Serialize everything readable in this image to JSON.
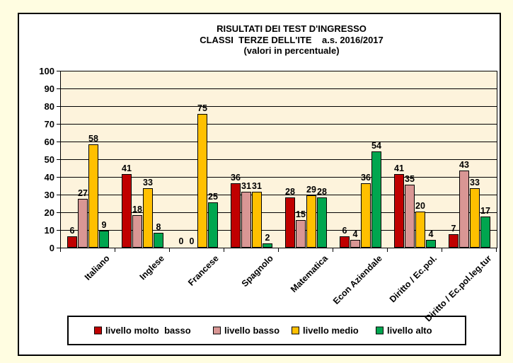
{
  "colors": {
    "page_background": "#FFFDE1",
    "chart_background": "#FFFFFF",
    "plot_background": "#FDF3DC"
  },
  "chart_data": {
    "type": "bar",
    "title_lines": [
      "RISULTATI DEI TEST D'INGRESSO",
      "CLASSI  TERZE DELL'ITE    a.s. 2016/2017",
      "(valori in percentuale)"
    ],
    "categories": [
      "Italiano",
      "Inglese",
      "Francese",
      "Spagnolo",
      "Matematica",
      "Econ Aziendale",
      "Diritto / Ec.pol.",
      "Diritto / Ec.pol.leg.tur"
    ],
    "series": [
      {
        "name": "livello molto  basso",
        "color": "#C00000",
        "values": [
          6,
          41,
          0,
          36,
          28,
          6,
          41,
          7
        ]
      },
      {
        "name": "livello basso",
        "color": "#D99694",
        "values": [
          27,
          18,
          0,
          31,
          15,
          4,
          35,
          43
        ]
      },
      {
        "name": "livello medio",
        "color": "#FFC000",
        "values": [
          58,
          33,
          75,
          31,
          29,
          36,
          20,
          33
        ]
      },
      {
        "name": "livello alto",
        "color": "#00A64F",
        "values": [
          9,
          8,
          25,
          2,
          28,
          54,
          4,
          17
        ]
      }
    ],
    "ylim": [
      0,
      100
    ],
    "ytick_step": 10,
    "grid": true,
    "value_labels": true,
    "legend_position": "bottom"
  }
}
